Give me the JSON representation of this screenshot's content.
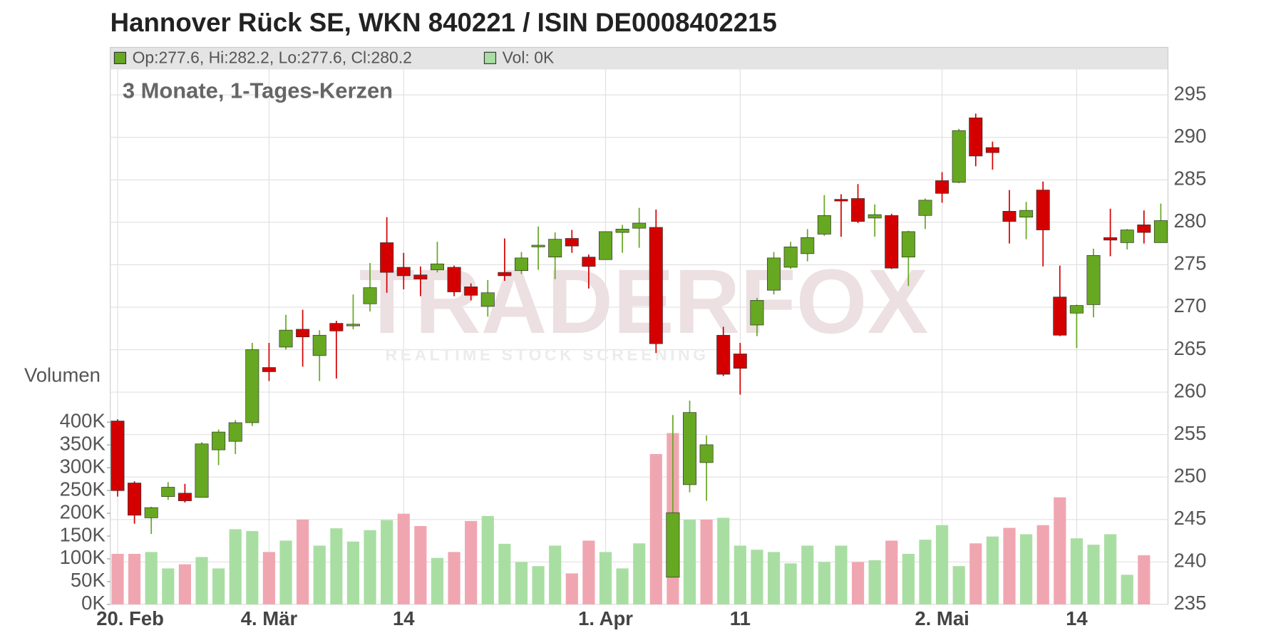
{
  "chart_data": {
    "type": "candlestick",
    "title": "Hannover Rück SE, WKN 840221 / ISIN DE0008402215",
    "subtitle": "3 Monate, 1-Tages-Kerzen",
    "info_ohlc": "Op:277.6, Hi:282.2, Lo:277.6, Cl:280.2",
    "info_volume": "Vol: 0K",
    "y2_label": "Volumen",
    "watermark": "TRADERFOX",
    "watermark_tagline": "REALTIME STOCK SCREENING",
    "categories": [
      "20. Feb",
      null,
      null,
      null,
      null,
      null,
      null,
      null,
      null,
      "4. Mär",
      null,
      null,
      null,
      null,
      null,
      null,
      null,
      "14",
      null,
      null,
      null,
      null,
      null,
      null,
      null,
      null,
      null,
      null,
      null,
      "1. Apr",
      null,
      null,
      null,
      null,
      null,
      null,
      null,
      "11",
      null,
      null,
      null,
      null,
      null,
      null,
      null,
      null,
      null,
      null,
      null,
      "2. Mai",
      null,
      null,
      null,
      null,
      null,
      null,
      null,
      "14",
      null,
      null,
      null,
      null,
      null
    ],
    "open": [
      256.6,
      249.3,
      245.2,
      247.7,
      248.1,
      247.6,
      253.2,
      254.2,
      256.4,
      262.9,
      265.3,
      267.4,
      264.3,
      268.1,
      267.8,
      270.4,
      277.6,
      274.7,
      273.8,
      274.4,
      274.7,
      272.4,
      270.1,
      274.1,
      274.3,
      277.1,
      275.9,
      278.1,
      275.9,
      275.6,
      278.8,
      279.3,
      279.4,
      238.2,
      249.1,
      251.7,
      266.7,
      264.5,
      267.9,
      272.0,
      274.7,
      276.3,
      278.6,
      282.7,
      282.8,
      280.5,
      280.8,
      275.9,
      280.8,
      284.9,
      284.7,
      292.3,
      288.8,
      281.3,
      280.6,
      283.8,
      271.2,
      269.3,
      270.3,
      278.2,
      277.6,
      279.7,
      277.6
    ],
    "high": [
      256.8,
      249.5,
      246.5,
      249.4,
      249.2,
      254.1,
      255.6,
      256.7,
      265.8,
      265.8,
      269.1,
      269.7,
      267.3,
      268.4,
      271.5,
      275.2,
      280.6,
      276.4,
      274.8,
      277.7,
      274.9,
      272.8,
      273.2,
      278.1,
      276.5,
      279.5,
      278.8,
      279.1,
      276.2,
      278.9,
      279.7,
      281.7,
      281.5,
      257.3,
      259.0,
      254.9,
      267.7,
      265.8,
      271.1,
      276.5,
      277.7,
      279.2,
      283.2,
      283.3,
      284.5,
      282.1,
      281.0,
      279.0,
      282.8,
      285.9,
      291.0,
      292.8,
      289.5,
      283.8,
      282.4,
      284.8,
      274.9,
      270.3,
      276.9,
      281.6,
      279.2,
      281.4,
      282.2
    ],
    "low": [
      247.7,
      244.5,
      243.3,
      247.3,
      247.0,
      247.6,
      251.4,
      252.7,
      256.0,
      261.3,
      265.0,
      263.0,
      261.3,
      261.6,
      267.4,
      269.5,
      271.7,
      272.1,
      271.3,
      274.1,
      271.3,
      270.8,
      268.9,
      273.1,
      273.9,
      274.4,
      273.3,
      276.4,
      272.2,
      275.6,
      276.4,
      277.0,
      264.6,
      238.2,
      248.2,
      247.2,
      261.9,
      259.7,
      266.6,
      271.5,
      274.5,
      275.4,
      278.4,
      278.3,
      279.9,
      278.3,
      274.5,
      272.5,
      279.2,
      282.3,
      284.6,
      286.6,
      286.2,
      277.5,
      278.0,
      274.8,
      266.6,
      265.2,
      268.8,
      276.0,
      276.8,
      277.5,
      277.6
    ],
    "close": [
      248.4,
      245.5,
      246.4,
      248.8,
      247.2,
      253.9,
      255.3,
      256.4,
      265.0,
      262.4,
      267.3,
      266.5,
      266.7,
      267.2,
      268.0,
      272.3,
      274.1,
      273.7,
      273.3,
      275.1,
      271.8,
      271.4,
      271.7,
      273.7,
      275.8,
      277.3,
      278.0,
      277.2,
      274.8,
      278.9,
      279.2,
      279.9,
      265.7,
      245.8,
      257.6,
      253.8,
      262.1,
      262.8,
      270.8,
      275.8,
      277.1,
      278.2,
      280.8,
      282.5,
      280.1,
      280.9,
      274.6,
      278.9,
      282.6,
      283.4,
      290.8,
      287.8,
      288.2,
      280.1,
      281.4,
      279.1,
      266.7,
      270.2,
      276.1,
      277.9,
      279.1,
      278.8,
      280.2
    ],
    "up_color": "#66a821",
    "down_color": "#d40000",
    "volume": [
      111000,
      111000,
      115000,
      79000,
      88000,
      104000,
      79000,
      165000,
      161000,
      115000,
      140000,
      186000,
      129000,
      167000,
      138000,
      163000,
      185000,
      199000,
      172000,
      102000,
      115000,
      183000,
      194000,
      133000,
      93000,
      84000,
      129000,
      68000,
      140000,
      115000,
      79000,
      134000,
      330000,
      376000,
      186000,
      186000,
      190000,
      129000,
      120000,
      115000,
      90000,
      129000,
      93000,
      129000,
      93000,
      97000,
      140000,
      111000,
      142000,
      174000,
      84000,
      134000,
      149000,
      168000,
      154000,
      174000,
      235000,
      145000,
      131000,
      154000,
      65000,
      108000,
      0
    ],
    "volume_colors": [
      "#f0a6b0",
      "#f0a6b0",
      "#a9dea3",
      "#a9dea3",
      "#f0a6b0",
      "#a9dea3",
      "#a9dea3",
      "#a9dea3",
      "#a9dea3",
      "#f0a6b0",
      "#a9dea3",
      "#f0a6b0",
      "#a9dea3",
      "#a9dea3",
      "#a9dea3",
      "#a9dea3",
      "#a9dea3",
      "#f0a6b0",
      "#f0a6b0",
      "#a9dea3",
      "#f0a6b0",
      "#f0a6b0",
      "#a9dea3",
      "#a9dea3",
      "#a9dea3",
      "#a9dea3",
      "#a9dea3",
      "#f0a6b0",
      "#f0a6b0",
      "#a9dea3",
      "#a9dea3",
      "#a9dea3",
      "#f0a6b0",
      "#f0a6b0",
      "#a9dea3",
      "#f0a6b0",
      "#a9dea3",
      "#a9dea3",
      "#a9dea3",
      "#a9dea3",
      "#a9dea3",
      "#a9dea3",
      "#a9dea3",
      "#a9dea3",
      "#f0a6b0",
      "#a9dea3",
      "#f0a6b0",
      "#a9dea3",
      "#a9dea3",
      "#a9dea3",
      "#a9dea3",
      "#f0a6b0",
      "#a9dea3",
      "#f0a6b0",
      "#a9dea3",
      "#f0a6b0",
      "#f0a6b0",
      "#a9dea3",
      "#a9dea3",
      "#a9dea3",
      "#a9dea3",
      "#f0a6b0",
      "#a9dea3"
    ],
    "ylim": [
      235,
      298
    ],
    "yticks": [
      235,
      240,
      245,
      250,
      255,
      260,
      265,
      270,
      275,
      280,
      285,
      290,
      295
    ],
    "y2lim": [
      0,
      1174000
    ],
    "y2ticks": [
      {
        "value": 0,
        "label": "0K"
      },
      {
        "value": 50000,
        "label": "50K"
      },
      {
        "value": 100000,
        "label": "100K"
      },
      {
        "value": 150000,
        "label": "150K"
      },
      {
        "value": 200000,
        "label": "200K"
      },
      {
        "value": 250000,
        "label": "250K"
      },
      {
        "value": 300000,
        "label": "300K"
      },
      {
        "value": 350000,
        "label": "350K"
      },
      {
        "value": 400000,
        "label": "400K"
      }
    ],
    "grid": true
  }
}
